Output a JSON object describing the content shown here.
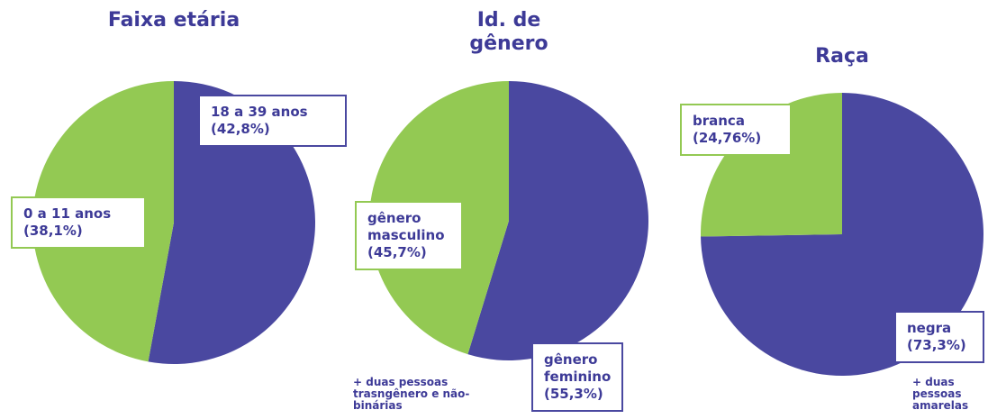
{
  "chart_data": [
    {
      "type": "pie",
      "title": "Faixa etária",
      "categories": [
        "18 a 39 anos",
        "0 a 11 anos"
      ],
      "values": [
        42.8,
        38.1
      ],
      "value_labels": [
        "(42,8%)",
        "(38,1%)"
      ],
      "colors": [
        "#4a48a0",
        "#93c953"
      ]
    },
    {
      "type": "pie",
      "title": "Id. de gênero",
      "categories": [
        "gênero feminino",
        "gênero masculino"
      ],
      "values": [
        55.3,
        45.7
      ],
      "value_labels": [
        "(55,3%)",
        "(45,7%)"
      ],
      "colors": [
        "#4a48a0",
        "#93c953"
      ],
      "annotation": "+ duas pessoas trasngênero e não-binárias"
    },
    {
      "type": "pie",
      "title": "Raça",
      "categories": [
        "negra",
        "branca"
      ],
      "values": [
        73.3,
        24.76
      ],
      "value_labels": [
        "(73,3%)",
        "(24,76%)"
      ],
      "colors": [
        "#4a48a0",
        "#93c953"
      ],
      "annotation": "+ duas pessoas amarelas"
    }
  ]
}
